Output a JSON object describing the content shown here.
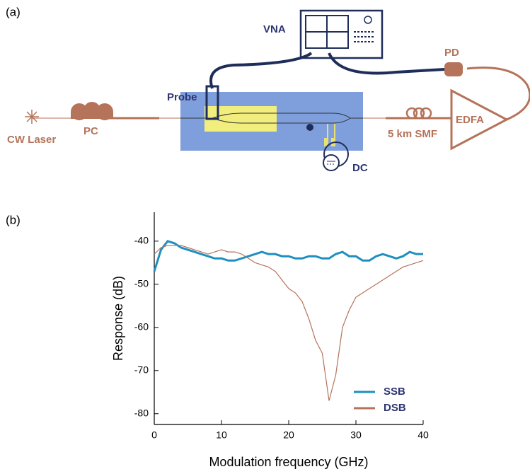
{
  "diagram": {
    "panel_label": "(a)",
    "vna": "VNA",
    "pd": "PD",
    "probe": "Probe",
    "laser": "CW Laser",
    "pc": "PC",
    "smf": "5 km SMF",
    "edfa": "EDFA",
    "dc": "DC"
  },
  "chart_data": {
    "type": "line",
    "panel_label": "(b)",
    "x_label": "Modulation frequency (GHz)",
    "y_label": "Response (dB)",
    "x": [
      0,
      1,
      2,
      3,
      4,
      5,
      6,
      7,
      8,
      9,
      10,
      11,
      12,
      13,
      14,
      15,
      16,
      17,
      18,
      19,
      20,
      21,
      22,
      23,
      24,
      25,
      26,
      27,
      28,
      29,
      30,
      31,
      32,
      33,
      34,
      35,
      36,
      37,
      38,
      39,
      40
    ],
    "series": [
      {
        "name": "SSB",
        "color": "#1f8fbf",
        "width": 3,
        "values": [
          -47,
          -42,
          -40,
          -40.5,
          -41.5,
          -42,
          -42.5,
          -43,
          -43.5,
          -44,
          -44,
          -44.5,
          -44.5,
          -44,
          -43.5,
          -43,
          -42.5,
          -43,
          -43,
          -43.5,
          -43.5,
          -44,
          -44,
          -43.5,
          -43.5,
          -44,
          -44,
          -43,
          -42.5,
          -43.5,
          -43.5,
          -44.5,
          -44.5,
          -43.5,
          -43,
          -43.5,
          -44,
          -43.5,
          -42.5,
          -43,
          -43
        ]
      },
      {
        "name": "DSB",
        "color": "#b5735a",
        "width": 1.2,
        "values": [
          -43,
          -41.5,
          -41,
          -41,
          -41,
          -41.5,
          -42,
          -42.5,
          -43,
          -42.5,
          -42,
          -42.5,
          -42.5,
          -43,
          -44,
          -45,
          -45.5,
          -46,
          -47,
          -49,
          -51,
          -52,
          -54,
          -58,
          -63,
          -66,
          -77,
          -71,
          -60,
          -56,
          -53,
          -52,
          -51,
          -50,
          -49,
          -48,
          -47,
          -46,
          -45.5,
          -45,
          -44.5
        ]
      }
    ],
    "xlim": [
      0,
      40
    ],
    "ylim": [
      -82.5,
      -33.3
    ],
    "xticks": [
      0,
      10,
      20,
      30,
      40
    ],
    "yticks": [
      -40,
      -50,
      -60,
      -70,
      -80
    ],
    "legend": "lower-right"
  }
}
